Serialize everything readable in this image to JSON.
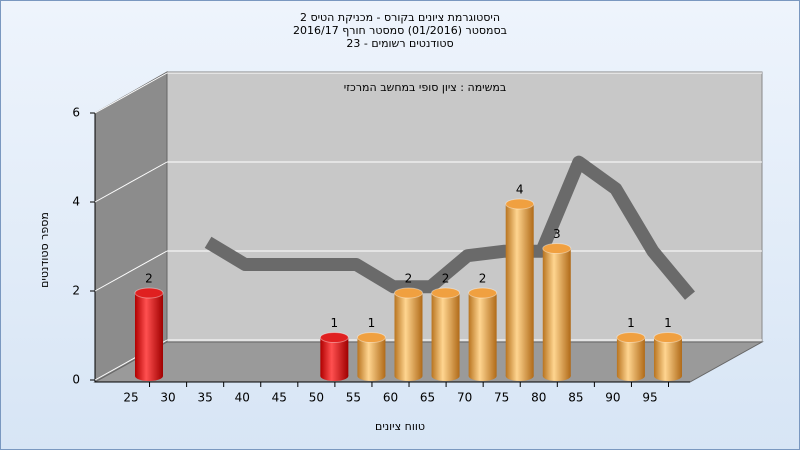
{
  "chart_data": {
    "type": "bar",
    "title": [
      "היסטוגרמת ציונים בקורס - מכניקת הטיס 2",
      "בסמסטר  (01/2016)  סמסטר חורף 2016/17",
      "סטודנטים רשומים - 23"
    ],
    "subtitle": "במשימה : ציון סופי במחשב המרכזי",
    "x_label": "טווח ציונים",
    "y_label": "מספר סטודנטים",
    "categories": [
      "25",
      "30",
      "35",
      "40",
      "45",
      "50",
      "55",
      "60",
      "65",
      "70",
      "75",
      "80",
      "85",
      "90",
      "95"
    ],
    "values": [
      2,
      null,
      null,
      null,
      null,
      1,
      1,
      2,
      2,
      2,
      4,
      3,
      null,
      1,
      1
    ],
    "bar_colors": [
      "#e02020",
      null,
      null,
      null,
      null,
      "#e02020",
      "#f0a040",
      "#f0a040",
      "#f0a040",
      "#f0a040",
      "#f0a040",
      "#f0a040",
      null,
      "#f0a040",
      "#f0a040"
    ],
    "trend": {
      "color": "#6a6a6a",
      "values": [
        null,
        2.6,
        2.1,
        2.1,
        2.1,
        2.1,
        1.6,
        1.6,
        2.3,
        2.4,
        2.4,
        4.4,
        3.8,
        2.4,
        1.4
      ]
    },
    "ylim": [
      0,
      6
    ],
    "yticks": [
      0,
      2,
      4,
      6
    ],
    "grid": true
  }
}
